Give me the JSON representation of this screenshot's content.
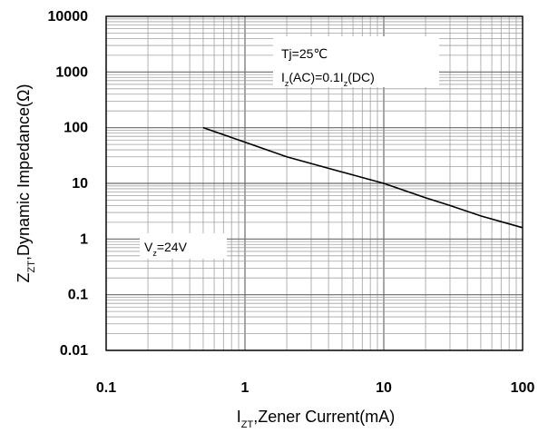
{
  "chart_data": {
    "type": "line",
    "xscale": "log",
    "yscale": "log",
    "xlim": [
      0.1,
      100
    ],
    "ylim": [
      0.01,
      10000
    ],
    "grid": true,
    "xlabel": {
      "main": "I",
      "sub": "ZT",
      "rest": ",Zener Current(mA)"
    },
    "ylabel": {
      "main": "Z",
      "sub": "ZT",
      "rest": ",Dynamic Impedance(Ω)"
    },
    "x_ticks": [
      {
        "value": 0.1,
        "label": "0.1"
      },
      {
        "value": 1,
        "label": "1"
      },
      {
        "value": 10,
        "label": "10"
      },
      {
        "value": 100,
        "label": "100"
      }
    ],
    "y_ticks": [
      {
        "value": 0.01,
        "label": "0.01"
      },
      {
        "value": 0.1,
        "label": "0.1"
      },
      {
        "value": 1,
        "label": "1"
      },
      {
        "value": 10,
        "label": "10"
      },
      {
        "value": 100,
        "label": "100"
      },
      {
        "value": 1000,
        "label": "1000"
      },
      {
        "value": 10000,
        "label": "10000"
      }
    ],
    "series": [
      {
        "color": "#000000",
        "x": [
          0.5,
          1,
          2,
          5,
          10,
          20,
          30,
          50,
          100
        ],
        "y": [
          100,
          55,
          30,
          16,
          10,
          5.5,
          4,
          2.6,
          1.6
        ]
      }
    ],
    "annotations": [
      {
        "id": "conditions",
        "lines": [
          [
            {
              "t": "Tj=25℃"
            }
          ],
          [
            {
              "t": "I"
            },
            {
              "t": "z",
              "sub": true
            },
            {
              "t": "(AC)=0.1I"
            },
            {
              "t": "z",
              "sub": true
            },
            {
              "t": "(DC)"
            }
          ]
        ]
      },
      {
        "id": "vz-label",
        "lines": [
          [
            {
              "t": "V"
            },
            {
              "t": "z",
              "sub": true
            },
            {
              "t": "=24V"
            }
          ]
        ]
      }
    ],
    "colors": {
      "axis": "#000000",
      "grid": "#a0a0a0",
      "text": "#000000",
      "background": "#ffffff"
    }
  }
}
